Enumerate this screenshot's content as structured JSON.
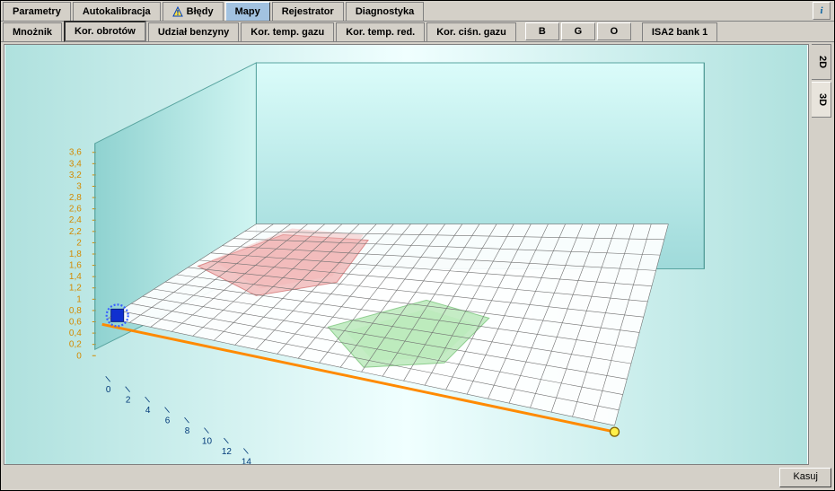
{
  "top_tabs": {
    "items": [
      {
        "label": "Parametry",
        "selected": false
      },
      {
        "label": "Autokalibracja",
        "selected": false
      },
      {
        "label": "Błędy",
        "selected": false,
        "warning_icon": true
      },
      {
        "label": "Mapy",
        "selected": true
      },
      {
        "label": "Rejestrator",
        "selected": false
      },
      {
        "label": "Diagnostyka",
        "selected": false
      }
    ]
  },
  "sub_tabs": {
    "items": [
      {
        "label": "Mnożnik"
      },
      {
        "label": "Kor. obrotów",
        "selected": true
      },
      {
        "label": "Udział benzyny"
      },
      {
        "label": "Kor. temp. gazu"
      },
      {
        "label": "Kor. temp. red."
      },
      {
        "label": "Kor. ciśn. gazu"
      }
    ],
    "small_buttons": [
      "B",
      "G",
      "O"
    ],
    "bank_label": "ISA2 bank 1"
  },
  "side_tabs": {
    "items": [
      {
        "label": "2D",
        "selected": false
      },
      {
        "label": "3D",
        "selected": true
      }
    ]
  },
  "bottom": {
    "kasuj": "Kasuj"
  },
  "chart": {
    "type": "3d-surface",
    "background_gradient": [
      "#afe1de",
      "#eaffff",
      "#afe1de"
    ],
    "backwall_gradient": [
      "#9fdada",
      "#dbfcfa"
    ],
    "sidewall_gradient": [
      "#9fdada",
      "#dbfcfa"
    ],
    "floor_color": "#f5f3e6",
    "grid_color": "#808080",
    "z_label_color": "#d48a00",
    "x_label_color": "#003878",
    "origin_line_color": "#ff8a00",
    "origin_line_width": 2,
    "marker_blue": "#1030d0",
    "marker_blue_halo": "#3a60ff",
    "marker_yellow_fill": "#fff04a",
    "marker_yellow_stroke": "#806000",
    "bump_red": "rgba(235,150,150,0.55)",
    "bump_green": "rgba(150,220,150,0.55)",
    "z_ticks": [
      "0",
      "0,2",
      "0,4",
      "0,6",
      "0,8",
      "1",
      "1,2",
      "1,4",
      "1,6",
      "1,8",
      "2",
      "2,2",
      "2,4",
      "2,6",
      "2,8",
      "3",
      "3,2",
      "3,4",
      "3,6"
    ],
    "z_range": [
      0,
      3.6
    ],
    "x_ticks": [
      "0",
      "2",
      "4",
      "6",
      "8",
      "10",
      "12",
      "14"
    ],
    "x_range": [
      0,
      15
    ],
    "grid_cols": 24,
    "grid_rows": 13
  }
}
